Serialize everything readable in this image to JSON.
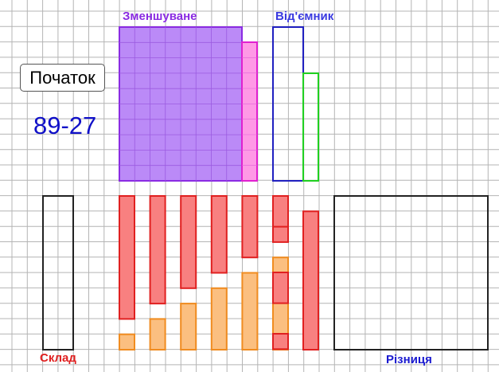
{
  "start_button": {
    "label": "Початок"
  },
  "expression": "89-27",
  "labels": {
    "minuend": "Зменшуване",
    "subtrahend": "Від'ємник",
    "composition": "Склад",
    "difference": "Різниця"
  },
  "colors": {
    "grid": "#b4b4b4",
    "background": "#ffffff",
    "minuend_fill": "#bb8af7",
    "minuend_border": "#8a2be2",
    "minuend_units_fill": "#ff99e6",
    "minuend_units_border": "#e020d0",
    "subtrahend_tens_border": "#2020c0",
    "subtrahend_units_border": "#20d020",
    "red_fill": "#f88080",
    "red_border": "#e02020",
    "orange_fill": "#fbbf80",
    "orange_border": "#f08c20",
    "box_border": "#222222",
    "label_minuend": "#8a2be2",
    "label_subtrahend": "#3a3ae0",
    "label_composition": "#e02020",
    "label_difference": "#1a1ad0",
    "expression": "#1010c8"
  },
  "columns": [
    {
      "red": 8,
      "orange": 1
    },
    {
      "red": 7,
      "orange": 2
    },
    {
      "red": 6,
      "orange": 3
    },
    {
      "red": 5,
      "orange": 4
    },
    {
      "red": 4,
      "orange": 5
    },
    {
      "red": 3,
      "orange": 6
    }
  ],
  "extra_red_column": 9,
  "sub_column_pieces": 3
}
